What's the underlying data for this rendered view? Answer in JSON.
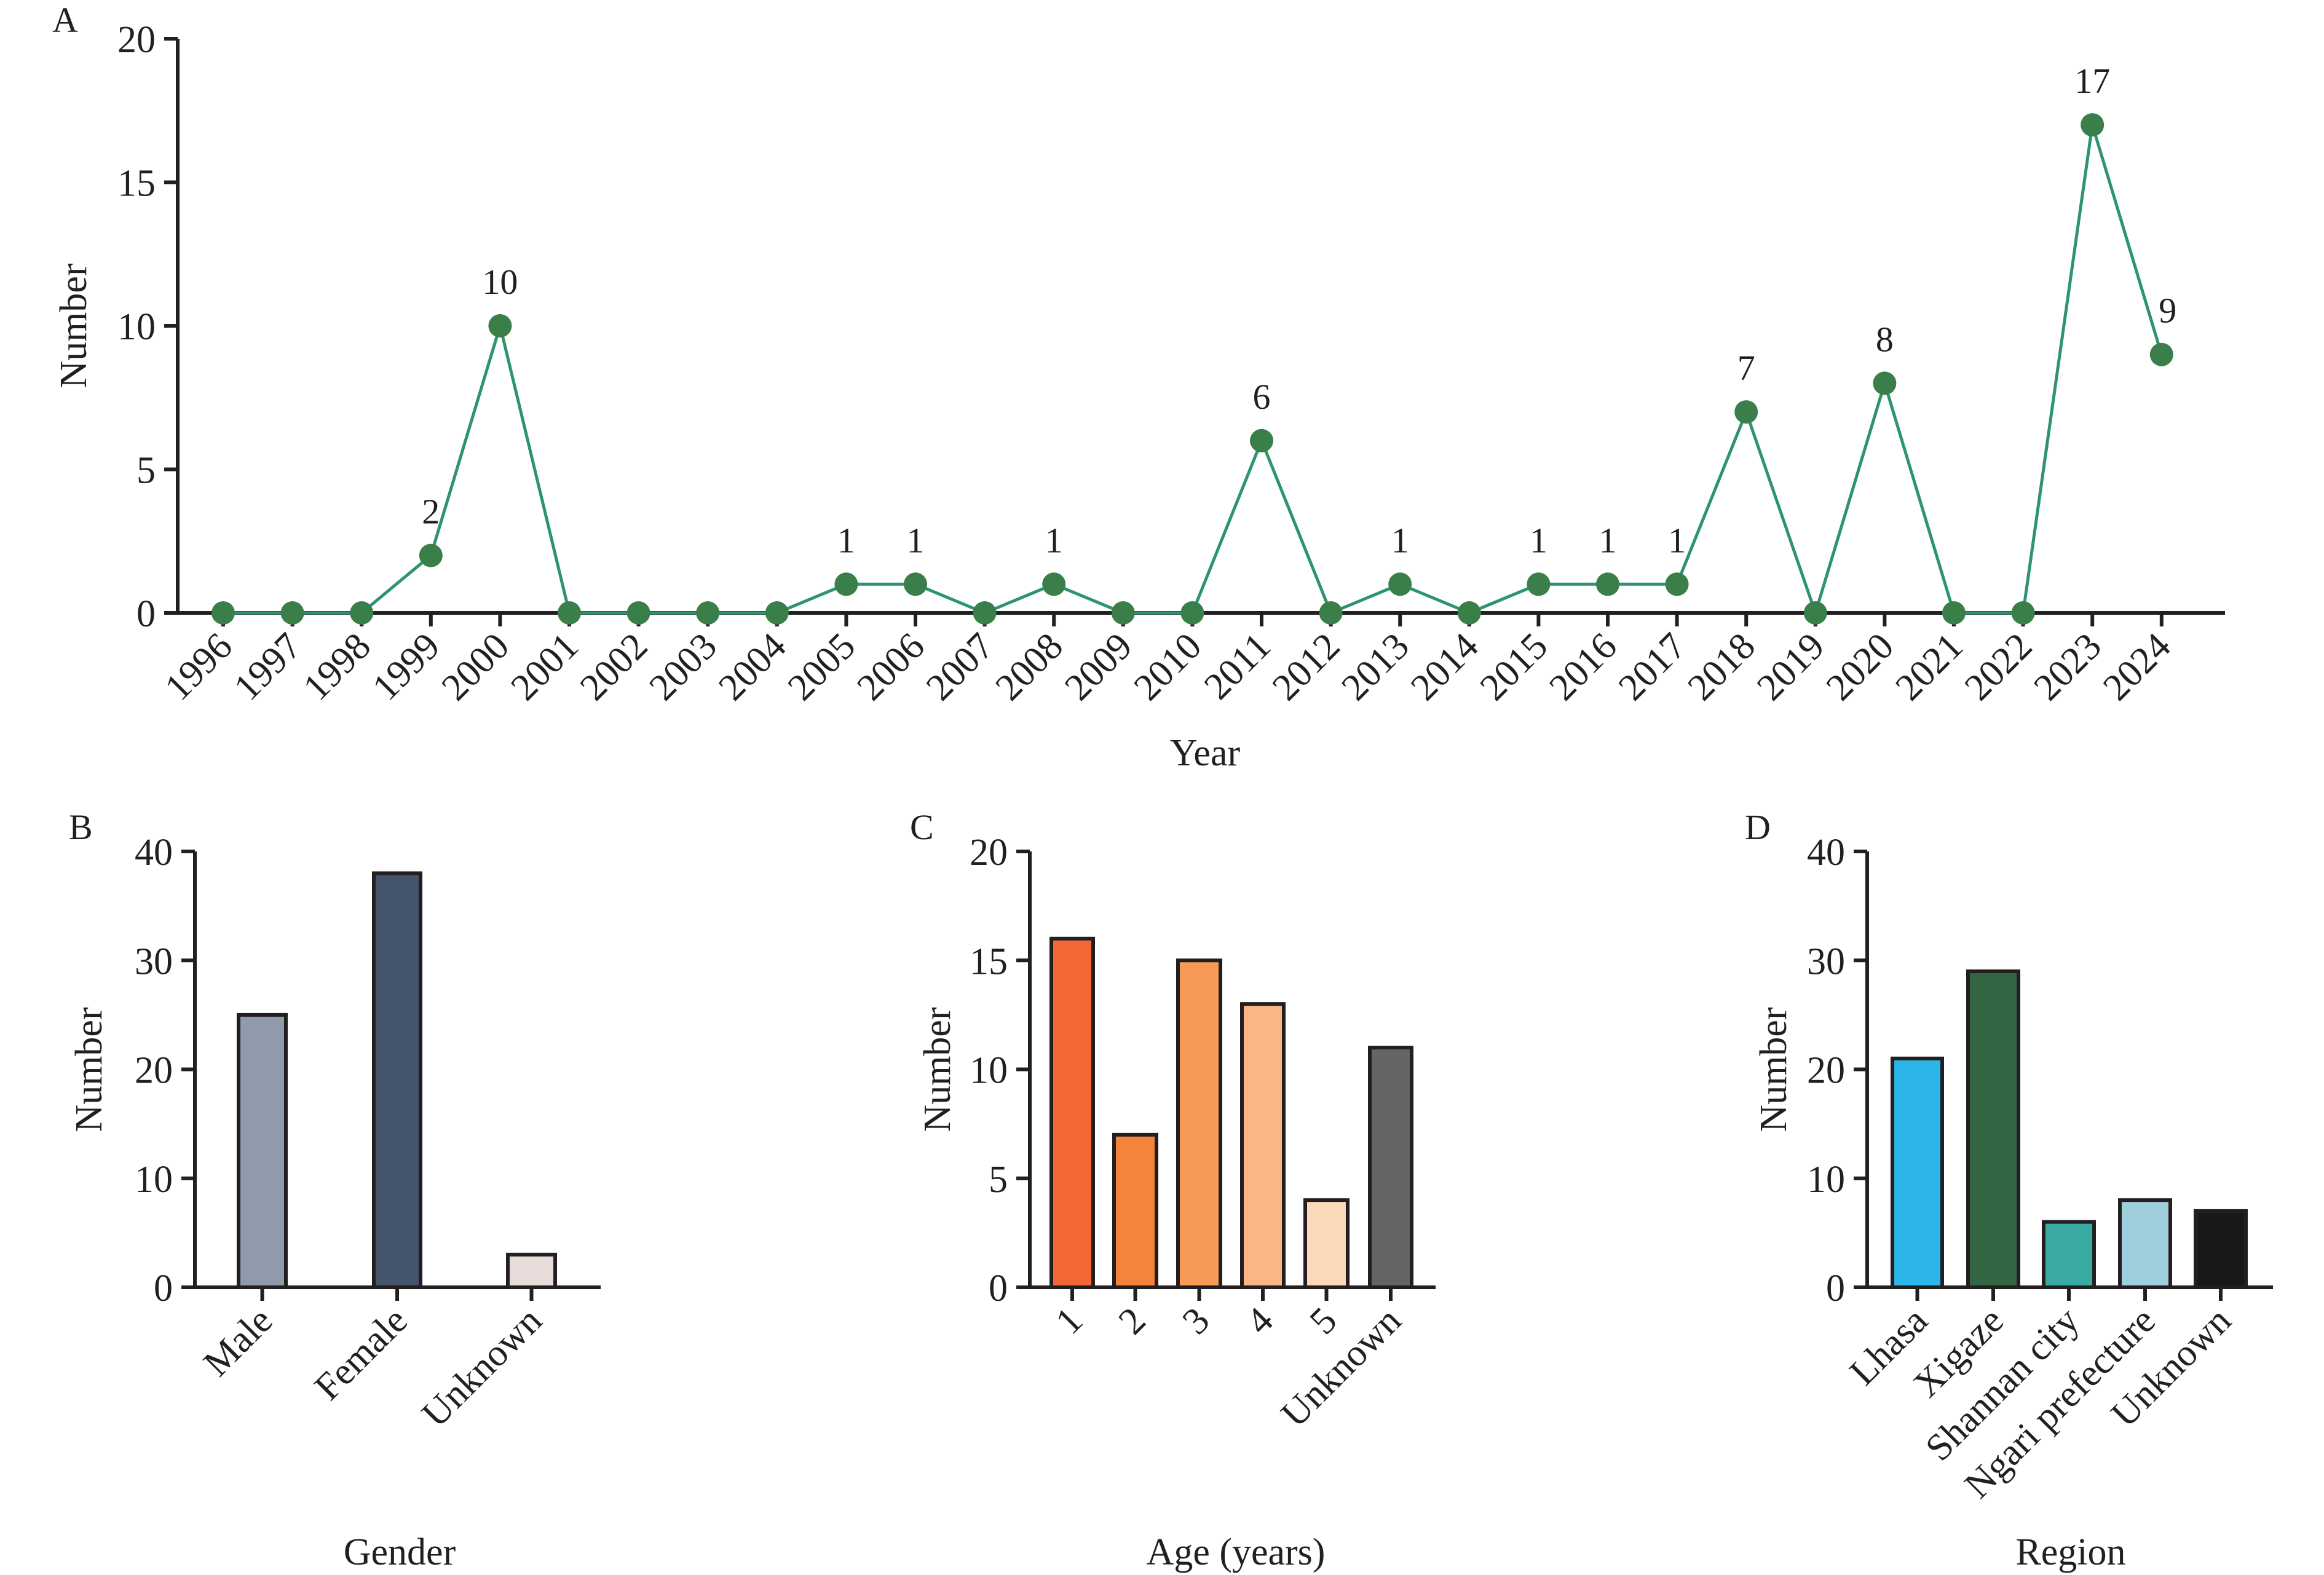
{
  "chart_data": [
    {
      "panel": "A",
      "type": "line",
      "xlabel": "Year",
      "ylabel": "Number",
      "ylim": [
        0,
        20
      ],
      "yticks": [
        0,
        5,
        10,
        15,
        20
      ],
      "x": [
        "1996",
        "1997",
        "1998",
        "1999",
        "2000",
        "2001",
        "2002",
        "2003",
        "2004",
        "2005",
        "2006",
        "2007",
        "2008",
        "2009",
        "2010",
        "2011",
        "2012",
        "2013",
        "2014",
        "2015",
        "2016",
        "2017",
        "2018",
        "2019",
        "2020",
        "2021",
        "2022",
        "2023",
        "2024"
      ],
      "values": [
        0,
        0,
        0,
        2,
        10,
        0,
        0,
        0,
        0,
        1,
        1,
        0,
        1,
        0,
        0,
        6,
        0,
        1,
        0,
        1,
        1,
        1,
        7,
        0,
        8,
        0,
        0,
        17,
        9
      ],
      "show_labels_for_nonzero": true,
      "line_color": "#2e9470",
      "marker_color": "#3a7f4a",
      "grid": false
    },
    {
      "panel": "B",
      "type": "bar",
      "xlabel": "Gender",
      "ylabel": "Number",
      "ylim": [
        0,
        40
      ],
      "yticks": [
        0,
        10,
        20,
        30,
        40
      ],
      "categories": [
        "Male",
        "Female",
        "Unknown"
      ],
      "values": [
        25,
        38,
        3
      ],
      "colors": [
        "#8f9aab",
        "#43546b",
        "#e7dcd9"
      ],
      "grid": false
    },
    {
      "panel": "C",
      "type": "bar",
      "xlabel": "Age (years)",
      "ylabel": "Number",
      "ylim": [
        0,
        20
      ],
      "yticks": [
        0,
        5,
        10,
        15,
        20
      ],
      "categories": [
        "1",
        "2",
        "3",
        "4",
        "5",
        "Unknown"
      ],
      "values": [
        16,
        7,
        15,
        13,
        4,
        11
      ],
      "colors": [
        "#f26735",
        "#f4843a",
        "#f79a58",
        "#fab785",
        "#fcd8bb",
        "#656567"
      ],
      "grid": false
    },
    {
      "panel": "D",
      "type": "bar",
      "xlabel": "Region",
      "ylabel": "Number",
      "ylim": [
        0,
        40
      ],
      "yticks": [
        0,
        10,
        20,
        30,
        40
      ],
      "categories": [
        "Lhasa",
        "Xigaze",
        "Shannan city",
        "Ngari prefecture",
        "Unknown"
      ],
      "values": [
        21,
        29,
        6,
        8,
        7
      ],
      "colors": [
        "#2bb5e8",
        "#326642",
        "#3aaba3",
        "#9fcfdc",
        "#171918"
      ],
      "grid": false
    }
  ]
}
